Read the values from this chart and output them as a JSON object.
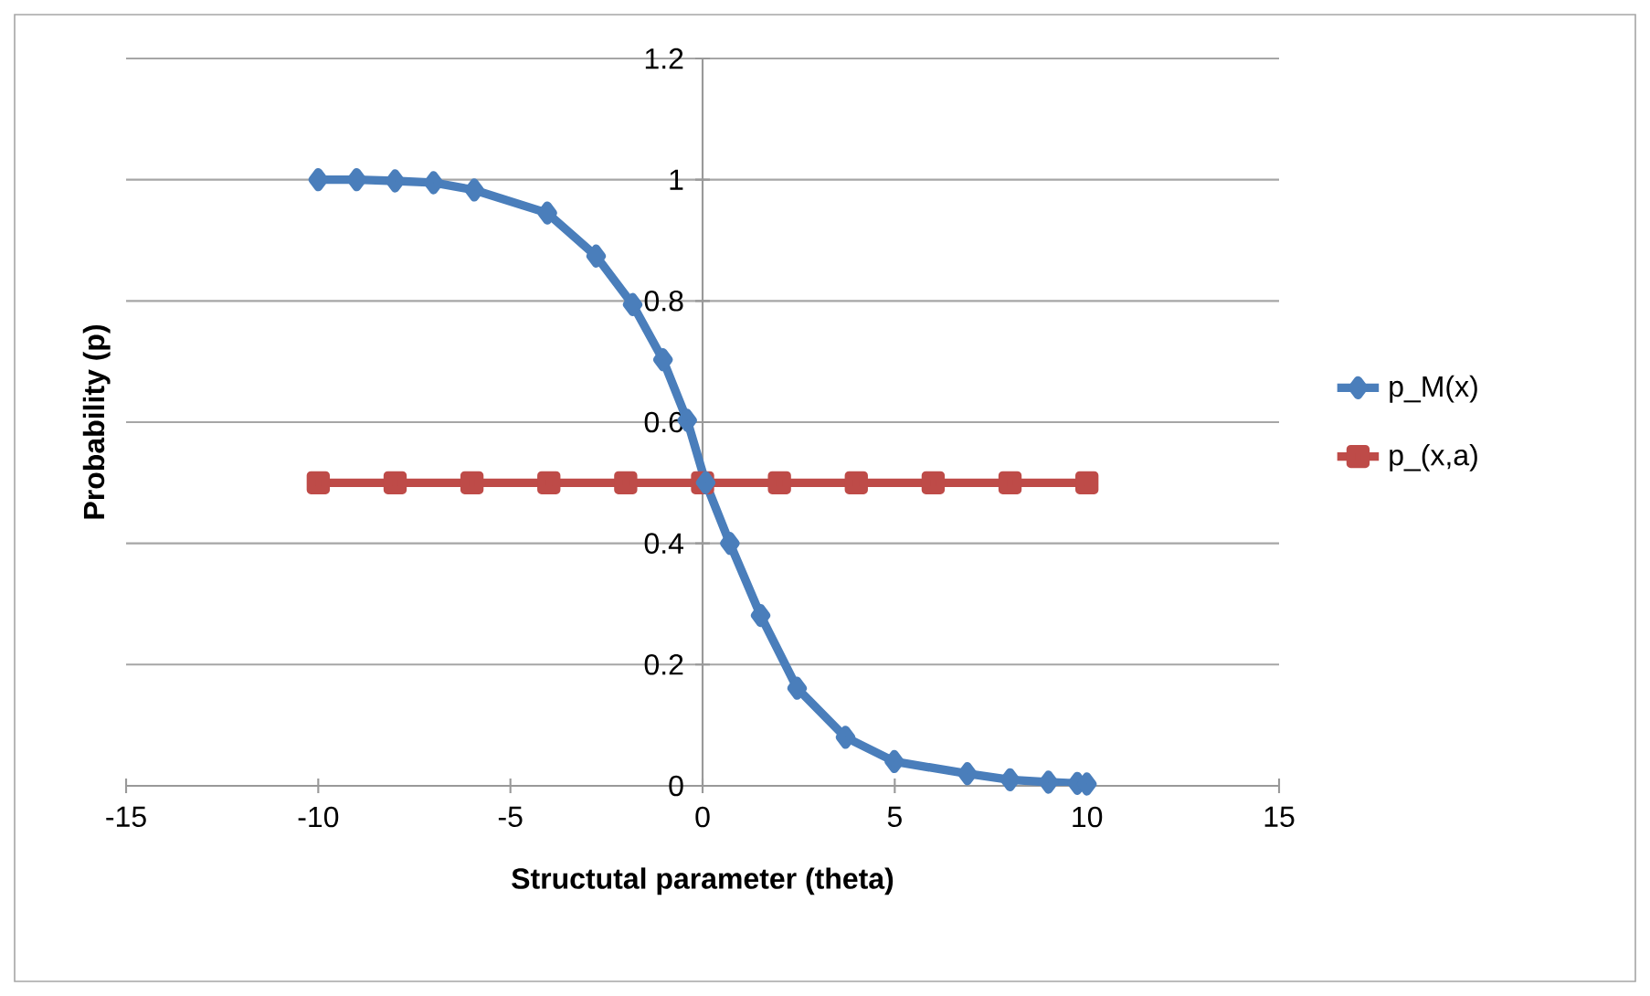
{
  "chart_data": {
    "type": "line",
    "xlabel": "Structutal parameter (theta)",
    "ylabel": "Probability  (p)",
    "xlim": [
      -15,
      15
    ],
    "xticks": [
      -15,
      -10,
      -5,
      0,
      5,
      10,
      15
    ],
    "ylim": [
      0,
      1.2
    ],
    "yticks": [
      0,
      0.2,
      0.4,
      0.6,
      0.8,
      1,
      1.2
    ],
    "grid": "y",
    "legend": "right",
    "series": [
      {
        "name": "p_M(x)",
        "color": "#4a7ebb",
        "marker": "diamond",
        "x": [
          -10,
          -9,
          -8,
          -7,
          -5.94,
          -4.04,
          -2.77,
          -1.82,
          -1.03,
          -0.4,
          0.08,
          0.71,
          1.51,
          2.46,
          3.72,
          4.99,
          6.89,
          8,
          9,
          9.75,
          10
        ],
        "values": [
          1,
          1,
          0.998,
          0.995,
          0.983,
          0.945,
          0.874,
          0.794,
          0.703,
          0.603,
          0.5,
          0.4,
          0.281,
          0.161,
          0.08,
          0.04,
          0.02,
          0.01,
          0.006,
          0.004,
          0.003
        ]
      },
      {
        "name": "p_(x,a)",
        "color": "#be4b48",
        "marker": "square",
        "x": [
          -10,
          -8,
          -6,
          -4,
          -2,
          0,
          2,
          4,
          6,
          8,
          10
        ],
        "values": [
          0.5,
          0.5,
          0.5,
          0.5,
          0.5,
          0.5,
          0.5,
          0.5,
          0.5,
          0.5,
          0.5
        ]
      }
    ]
  }
}
